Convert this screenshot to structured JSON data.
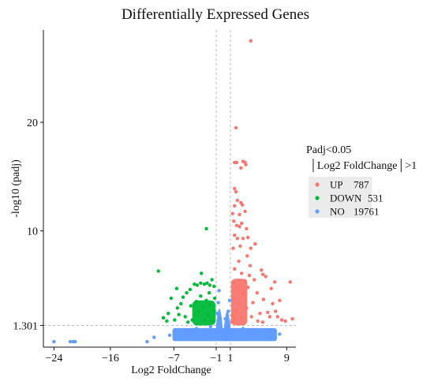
{
  "chart_data": {
    "type": "scatter",
    "title": "Differentially Expressed Genes",
    "xlabel": "Log2 FoldChange",
    "ylabel": "-log10 (padj)",
    "xlim": [
      -25.5,
      10.3
    ],
    "ylim": [
      -0.7,
      28.5
    ],
    "x_ticks": [
      -24,
      -16,
      -7,
      -1,
      1,
      9
    ],
    "x_tick_labels": [
      "−24",
      "−16",
      "−7",
      "−1",
      "1",
      "9"
    ],
    "y_ticks": [
      1.301,
      10,
      20
    ],
    "y_tick_labels": [
      "1.301",
      "10",
      "20"
    ],
    "threshold_lines": {
      "x": [
        -1,
        1
      ],
      "y": 1.301
    },
    "grid": false,
    "legend_position": "right",
    "legend": {
      "title_line1": "Padj<0.05",
      "title_line2": "│Log2 FoldChange│>1",
      "entries": [
        {
          "label": "UP",
          "count": "787",
          "color": "#F8766D"
        },
        {
          "label": "DOWN",
          "count": "531",
          "color": "#00BA38"
        },
        {
          "label": "NO",
          "count": "19761",
          "color": "#619CFF"
        }
      ]
    },
    "series": [
      {
        "name": "UP",
        "color": "#F8766D",
        "points": [
          [
            3.9,
            27.5
          ],
          [
            1.8,
            19.5
          ],
          [
            1.6,
            16.3
          ],
          [
            1.9,
            16.3
          ],
          [
            2.5,
            15.8
          ],
          [
            2.8,
            16.4
          ],
          [
            3.1,
            16.3
          ],
          [
            3.2,
            16.1
          ],
          [
            1.6,
            13.9
          ],
          [
            1.8,
            13.6
          ],
          [
            1.6,
            12.3
          ],
          [
            2.0,
            12.8
          ],
          [
            2.3,
            11.5
          ],
          [
            2.5,
            12.6
          ],
          [
            2.7,
            12.4
          ],
          [
            3.1,
            11.8
          ],
          [
            1.3,
            11.6
          ],
          [
            1.5,
            10.9
          ],
          [
            1.9,
            10.5
          ],
          [
            2.3,
            10.4
          ],
          [
            2.6,
            10.7
          ],
          [
            3.3,
            10.2
          ],
          [
            1.6,
            9.6
          ],
          [
            2.0,
            9.3
          ],
          [
            2.8,
            9.3
          ],
          [
            3.5,
            9.4
          ],
          [
            3.9,
            8.4
          ],
          [
            4.5,
            8.8
          ],
          [
            3.4,
            7.7
          ],
          [
            3.8,
            6.8
          ],
          [
            2.4,
            8.6
          ],
          [
            1.4,
            8.4
          ],
          [
            5.4,
            6.4
          ],
          [
            5.6,
            6.0
          ],
          [
            6.0,
            5.8
          ],
          [
            7.3,
            5.3
          ],
          [
            6.8,
            4.7
          ],
          [
            4.8,
            4.3
          ],
          [
            8.0,
            3.6
          ],
          [
            8.3,
            1.8
          ],
          [
            9.5,
            5.3
          ],
          [
            9.8,
            1.9
          ],
          [
            5.2,
            2.4
          ],
          [
            6.6,
            2.1
          ],
          [
            7.4,
            2.6
          ],
          [
            7.0,
            3.3
          ],
          [
            4.4,
            5.5
          ],
          [
            3.7,
            5.9
          ],
          [
            1.6,
            6.5
          ],
          [
            2.2,
            7.2
          ],
          [
            2.6,
            6.1
          ],
          [
            3.1,
            5.4
          ],
          [
            2.0,
            4.8
          ],
          [
            1.5,
            3.8
          ],
          [
            4.2,
            3.4
          ],
          [
            3.3,
            2.9
          ],
          [
            1.3,
            2.2
          ],
          [
            1.8,
            2.7
          ],
          [
            2.3,
            3.3
          ],
          [
            2.9,
            4.2
          ],
          [
            1.4,
            5.3
          ],
          [
            6.3,
            2.5
          ],
          [
            5.7,
            3.7
          ],
          [
            4.9,
            1.7
          ],
          [
            5.6,
            1.6
          ],
          [
            7.7,
            2.1
          ],
          [
            8.8,
            1.7
          ],
          [
            2.6,
            2.0
          ],
          [
            4.0,
            2.1
          ],
          [
            1.2,
            1.6
          ],
          [
            3.5,
            4.8
          ],
          [
            1.7,
            1.9
          ]
        ]
      },
      {
        "name": "DOWN",
        "color": "#00BA38",
        "points": [
          [
            -2.4,
            10.2
          ],
          [
            -9.2,
            6.3
          ],
          [
            -3.1,
            6.1
          ],
          [
            -6.6,
            4.7
          ],
          [
            -7.4,
            3.8
          ],
          [
            -8.5,
            2.0
          ],
          [
            -7.8,
            2.4
          ],
          [
            -6.0,
            3.3
          ],
          [
            -5.7,
            3.9
          ],
          [
            -5.2,
            4.3
          ],
          [
            -4.7,
            4.6
          ],
          [
            -4.1,
            5.1
          ],
          [
            -3.7,
            5.0
          ],
          [
            -3.2,
            5.2
          ],
          [
            -2.7,
            5.1
          ],
          [
            -2.3,
            5.2
          ],
          [
            -1.9,
            5.0
          ],
          [
            -1.6,
            5.5
          ],
          [
            -1.3,
            4.9
          ],
          [
            -2.4,
            3.6
          ],
          [
            -2.9,
            3.0
          ],
          [
            -3.5,
            2.6
          ],
          [
            -4.0,
            2.2
          ],
          [
            -4.6,
            3.1
          ],
          [
            -5.4,
            2.1
          ],
          [
            -6.3,
            2.3
          ],
          [
            -6.9,
            1.8
          ],
          [
            -3.2,
            4.0
          ],
          [
            -1.8,
            3.2
          ],
          [
            -1.3,
            2.6
          ],
          [
            -2.1,
            2.2
          ],
          [
            -1.5,
            1.7
          ],
          [
            -2.6,
            1.8
          ],
          [
            -4.4,
            1.8
          ],
          [
            -5.0,
            1.6
          ],
          [
            -8.0,
            1.7
          ],
          [
            -3.8,
            3.5
          ],
          [
            -2.0,
            4.3
          ],
          [
            -1.2,
            3.8
          ],
          [
            -6.5,
            2.9
          ]
        ]
      },
      {
        "name": "NO",
        "color": "#619CFF",
        "points": [
          [
            -24.0,
            -0.2
          ],
          [
            -21.7,
            -0.2
          ],
          [
            -21.3,
            -0.2
          ],
          [
            -21.0,
            -0.2
          ],
          [
            -10.8,
            -0.2
          ],
          [
            -9.8,
            0.2
          ],
          [
            -7.6,
            0.4
          ],
          [
            -6.8,
            0.6
          ],
          [
            -6.0,
            0.3
          ],
          [
            -5.2,
            0.8
          ],
          [
            -4.5,
            0.5
          ],
          [
            -3.8,
            1.0
          ],
          [
            -3.0,
            0.4
          ],
          [
            -2.4,
            0.9
          ],
          [
            -1.8,
            1.2
          ],
          [
            -0.8,
            1.0
          ],
          [
            -0.4,
            0.6
          ],
          [
            0.0,
            0.3
          ],
          [
            0.4,
            0.7
          ],
          [
            0.8,
            1.1
          ],
          [
            1.5,
            0.9
          ],
          [
            2.1,
            0.6
          ],
          [
            2.8,
            1.0
          ],
          [
            3.5,
            0.4
          ],
          [
            4.2,
            0.8
          ],
          [
            5.0,
            0.5
          ],
          [
            5.8,
            0.6
          ],
          [
            6.4,
            0.3
          ],
          [
            7.0,
            0.9
          ],
          [
            8.0,
            0.5
          ],
          [
            -0.9,
            2.4
          ],
          [
            -0.7,
            3.4
          ],
          [
            -0.6,
            4.5
          ],
          [
            0.3,
            1.9
          ],
          [
            0.7,
            2.6
          ],
          [
            0.9,
            3.6
          ]
        ]
      }
    ]
  }
}
